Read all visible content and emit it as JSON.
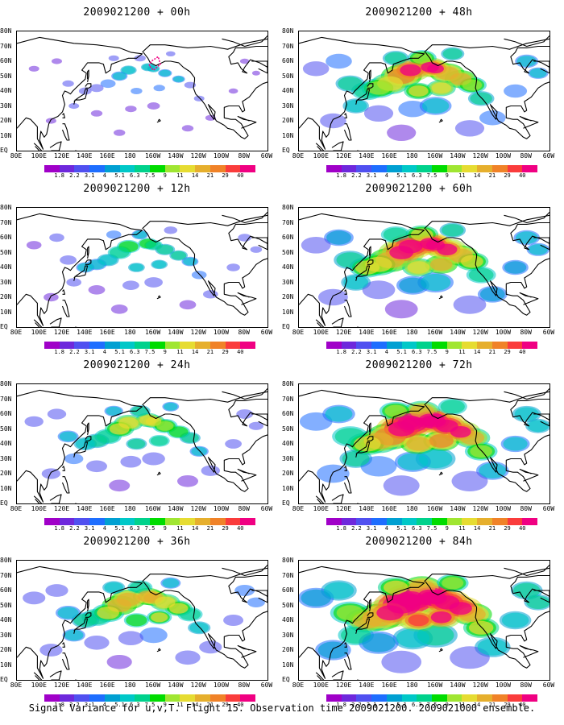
{
  "figure": {
    "caption": "Signal Variance for u,v,T. Flight 15. Observation time 2009021200. 2009021000 ensemble."
  },
  "map": {
    "lat_labels": [
      "80N",
      "70N",
      "60N",
      "50N",
      "40N",
      "30N",
      "20N",
      "10N",
      "EQ"
    ],
    "lon_labels": [
      "80E",
      "100E",
      "120E",
      "140E",
      "160E",
      "180",
      "160W",
      "140W",
      "120W",
      "100W",
      "80W",
      "60W"
    ],
    "lon_range": [
      80,
      300
    ],
    "lat_range": [
      0,
      80
    ]
  },
  "colorbar": {
    "labels": [
      "1.8",
      "2.2",
      "3.1",
      "4",
      "5.1",
      "6.3",
      "7.5",
      "9",
      "11",
      "14",
      "21",
      "29",
      "40"
    ],
    "colors": [
      "#a000c8",
      "#6e28dc",
      "#5050f0",
      "#1e6eff",
      "#00a0d2",
      "#00c8c8",
      "#00d28c",
      "#00dc00",
      "#a0e632",
      "#e6dc32",
      "#e6af2d",
      "#f08228",
      "#fa3c3c",
      "#f00082"
    ]
  },
  "panels": [
    {
      "title": "2009021200 + 00h",
      "intensity": 0.0
    },
    {
      "title": "2009021200 + 48h",
      "intensity": 0.62
    },
    {
      "title": "2009021200 + 12h",
      "intensity": 0.18
    },
    {
      "title": "2009021200 + 60h",
      "intensity": 0.75
    },
    {
      "title": "2009021200 + 24h",
      "intensity": 0.33
    },
    {
      "title": "2009021200 + 72h",
      "intensity": 0.87
    },
    {
      "title": "2009021200 + 36h",
      "intensity": 0.48
    },
    {
      "title": "2009021200 + 84h",
      "intensity": 1.0
    }
  ]
}
